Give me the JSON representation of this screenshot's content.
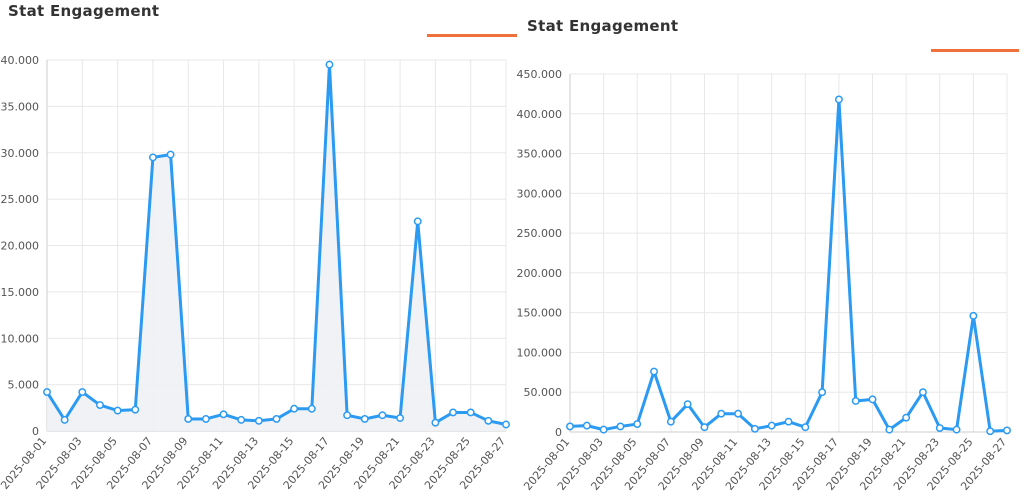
{
  "colors": {
    "series": "#2b9af3",
    "fill": "#eef1f5",
    "legend": "#f0703c",
    "grid": "#e8e8e8",
    "axis": "#cccccc"
  },
  "chart_data": [
    {
      "type": "line",
      "title": "Stat Engagement",
      "legend_placement": "top-right",
      "grid": true,
      "area_fill": true,
      "x": [
        "2025-08-01",
        "2025-08-02",
        "2025-08-03",
        "2025-08-04",
        "2025-08-05",
        "2025-08-06",
        "2025-08-07",
        "2025-08-08",
        "2025-08-09",
        "2025-08-10",
        "2025-08-11",
        "2025-08-12",
        "2025-08-13",
        "2025-08-14",
        "2025-08-15",
        "2025-08-16",
        "2025-08-17",
        "2025-08-18",
        "2025-08-19",
        "2025-08-20",
        "2025-08-21",
        "2025-08-22",
        "2025-08-23",
        "2025-08-24",
        "2025-08-25",
        "2025-08-26",
        "2025-08-27"
      ],
      "x_tick_labels": [
        "2025-08-01",
        "2025-08-03",
        "2025-08-05",
        "2025-08-07",
        "2025-08-09",
        "2025-08-11",
        "2025-08-13",
        "2025-08-15",
        "2025-08-17",
        "2025-08-19",
        "2025-08-21",
        "2025-08-23",
        "2025-08-25",
        "2025-08-27"
      ],
      "ylim": [
        0,
        40000
      ],
      "y_ticks": [
        0,
        5000,
        10000,
        15000,
        20000,
        25000,
        30000,
        35000,
        40000
      ],
      "y_tick_labels": [
        "0",
        "5.000",
        "10.000",
        "15.000",
        "20.000",
        "25.000",
        "30.000",
        "35.000",
        "40.000"
      ],
      "series": [
        {
          "values": [
            4200,
            1200,
            4200,
            2800,
            2200,
            2300,
            29500,
            29800,
            1300,
            1300,
            1800,
            1200,
            1100,
            1300,
            2400,
            2400,
            39500,
            1700,
            1300,
            1700,
            1400,
            22600,
            900,
            2000,
            2000,
            1100,
            700
          ]
        }
      ]
    },
    {
      "type": "line",
      "title": "Stat Engagement",
      "legend_placement": "top-right",
      "grid": true,
      "area_fill": false,
      "x": [
        "2025-08-01",
        "2025-08-02",
        "2025-08-03",
        "2025-08-04",
        "2025-08-05",
        "2025-08-06",
        "2025-08-07",
        "2025-08-08",
        "2025-08-09",
        "2025-08-10",
        "2025-08-11",
        "2025-08-12",
        "2025-08-13",
        "2025-08-14",
        "2025-08-15",
        "2025-08-16",
        "2025-08-17",
        "2025-08-18",
        "2025-08-19",
        "2025-08-20",
        "2025-08-21",
        "2025-08-22",
        "2025-08-23",
        "2025-08-24",
        "2025-08-25",
        "2025-08-26",
        "2025-08-27"
      ],
      "x_tick_labels": [
        "2025-08-01",
        "2025-08-03",
        "2025-08-05",
        "2025-08-07",
        "2025-08-09",
        "2025-08-11",
        "2025-08-13",
        "2025-08-15",
        "2025-08-17",
        "2025-08-19",
        "2025-08-21",
        "2025-08-23",
        "2025-08-25",
        "2025-08-27"
      ],
      "ylim": [
        0,
        450000
      ],
      "y_ticks": [
        0,
        50000,
        100000,
        150000,
        200000,
        250000,
        300000,
        350000,
        400000,
        450000
      ],
      "y_tick_labels": [
        "0",
        "50.000",
        "100.000",
        "150.000",
        "200.000",
        "250.000",
        "300.000",
        "350.000",
        "400.000",
        "450.000"
      ],
      "series": [
        {
          "values": [
            7000,
            8000,
            3000,
            7000,
            10000,
            76000,
            13000,
            35000,
            6000,
            23000,
            23000,
            4000,
            8000,
            13000,
            6000,
            50000,
            418000,
            39000,
            41000,
            3000,
            18000,
            50000,
            5000,
            3000,
            146000,
            1000,
            2000
          ]
        }
      ]
    }
  ]
}
